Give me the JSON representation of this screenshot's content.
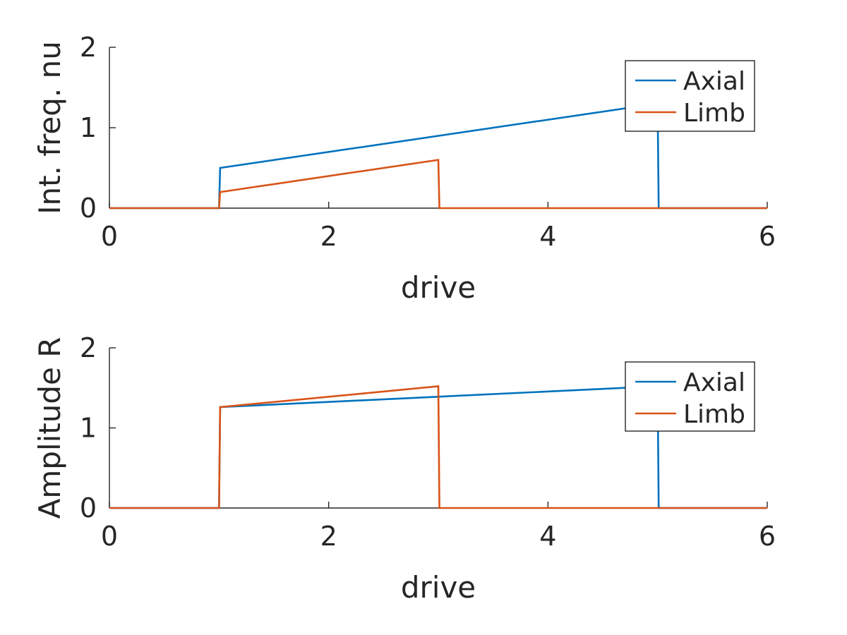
{
  "colors": {
    "axial": "#0072BD",
    "limb": "#D95319",
    "axis": "#262626"
  },
  "chart_data": [
    {
      "type": "line",
      "xlabel": "drive",
      "ylabel": "Int. freq. nu",
      "xlim": [
        0,
        6
      ],
      "ylim": [
        0,
        2
      ],
      "xticks": [
        "0",
        "2",
        "4",
        "6"
      ],
      "yticks": [
        "0",
        "1",
        "2"
      ],
      "grid": false,
      "legend": "top-right",
      "series": [
        {
          "name": "Axial",
          "color": "#0072BD",
          "x": [
            0,
            1,
            1.01,
            5,
            5.01,
            6
          ],
          "y": [
            0,
            0,
            0.5,
            1.3,
            0,
            0
          ]
        },
        {
          "name": "Limb",
          "color": "#D95319",
          "x": [
            0,
            1,
            1.01,
            3,
            3.01,
            6
          ],
          "y": [
            0,
            0,
            0.2,
            0.6,
            0,
            0
          ]
        }
      ]
    },
    {
      "type": "line",
      "xlabel": "drive",
      "ylabel": "Amplitude R",
      "xlim": [
        0,
        6
      ],
      "ylim": [
        0,
        2
      ],
      "xticks": [
        "0",
        "2",
        "4",
        "6"
      ],
      "yticks": [
        "0",
        "1",
        "2"
      ],
      "grid": false,
      "legend": "top-right",
      "series": [
        {
          "name": "Axial",
          "color": "#0072BD",
          "x": [
            0,
            1,
            1.01,
            5,
            5.01,
            6
          ],
          "y": [
            0,
            0,
            1.26,
            1.52,
            0,
            0
          ]
        },
        {
          "name": "Limb",
          "color": "#D95319",
          "x": [
            0,
            1,
            1.01,
            3,
            3.01,
            6
          ],
          "y": [
            0,
            0,
            1.26,
            1.52,
            0,
            0
          ]
        }
      ]
    }
  ]
}
